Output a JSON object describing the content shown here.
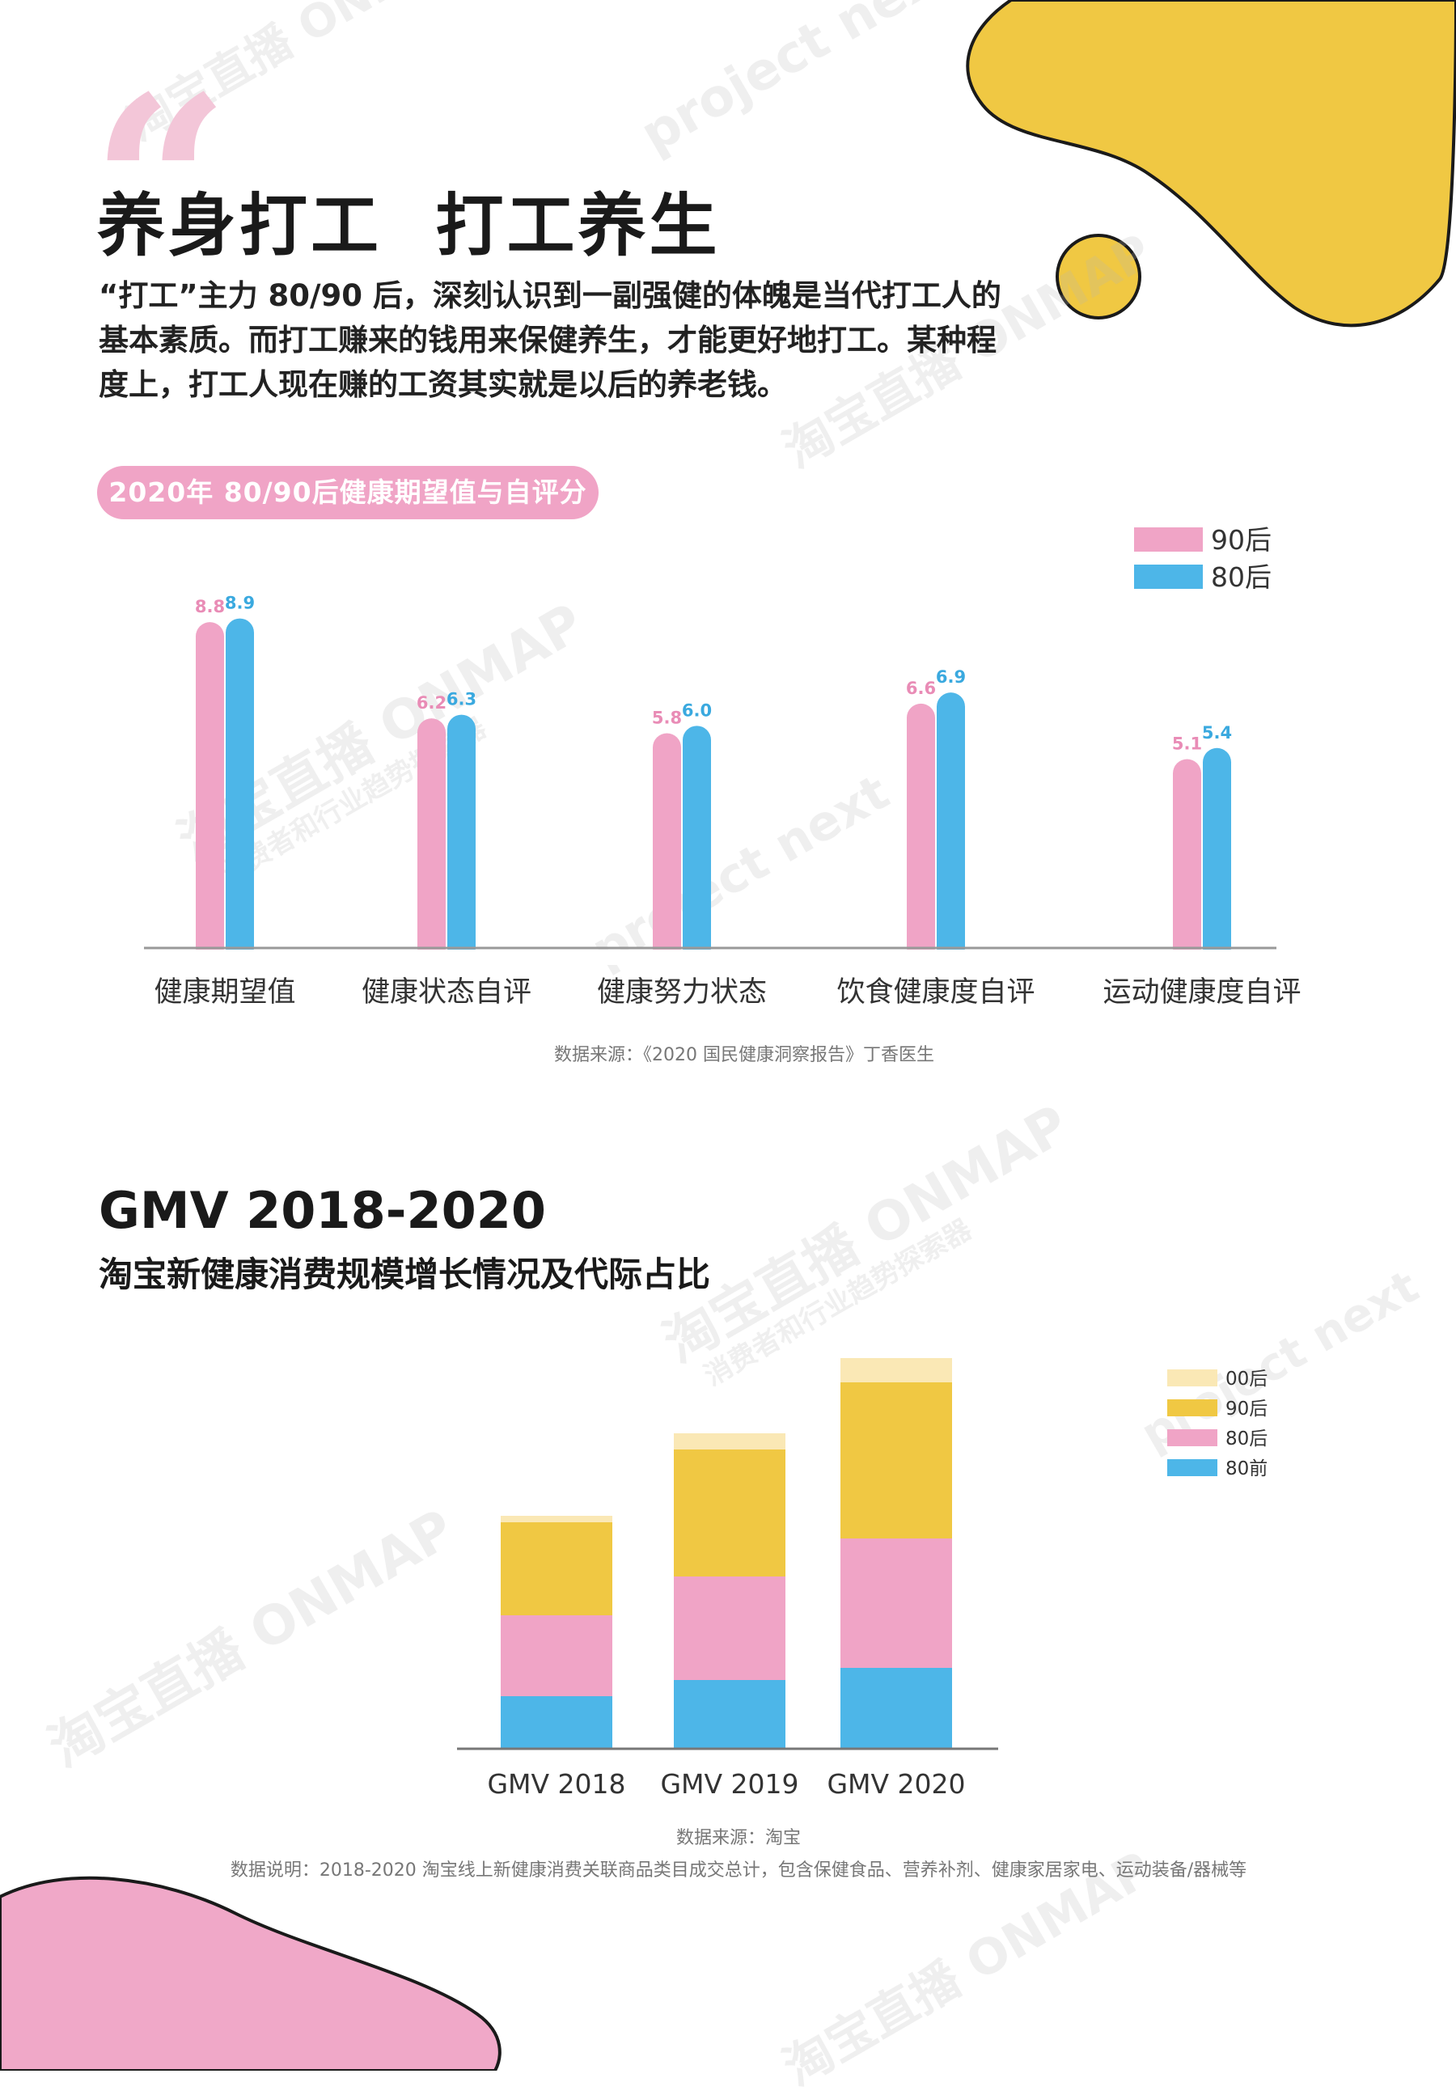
{
  "colors": {
    "pink": "#f0a4c6",
    "blue": "#4db6e8",
    "yellow": "#f0c843",
    "pale_yellow": "#fae8b5",
    "pink_label": "#e98cb6",
    "blue_label": "#3aa9df"
  },
  "header": {
    "quote_mark": "“",
    "title": "养身打工  打工养生",
    "intro": "“打工”主力 80/90 后，深刻认识到一副强健的体魄是当代打工人的基本素质。而打工赚来的钱用来保健养生，才能更好地打工。某种程度上，打工人现在赚的工资其实就是以后的养老钱。"
  },
  "watermarks": [
    "淘宝直播 ONMAP",
    "消费者和行业趋势探索器",
    "project next"
  ],
  "chart1": {
    "pill_label": "2020年 80/90后健康期望值与自评分",
    "source": "数据来源：《2020 国民健康洞察报告》丁香医生"
  },
  "chart2": {
    "title": "GMV 2018-2020",
    "subtitle": "淘宝新健康消费规模增长情况及代际占比",
    "source": "数据来源：淘宝",
    "note": "数据说明：2018-2020 淘宝线上新健康消费关联商品类目成交总计，包含保健食品、营养补剂、健康家居家电、运动装备/器械等"
  },
  "chart_data": [
    {
      "type": "bar",
      "title": "2020年 80/90后健康期望值与自评分",
      "categories": [
        "健康期望值",
        "健康状态自评",
        "健康努力状态",
        "饮食健康度自评",
        "运动健康度自评"
      ],
      "series": [
        {
          "name": "90后",
          "color": "#f0a4c6",
          "values": [
            8.8,
            6.2,
            5.8,
            6.6,
            5.1
          ]
        },
        {
          "name": "80后",
          "color": "#4db6e8",
          "values": [
            8.9,
            6.3,
            6.0,
            6.9,
            5.4
          ]
        }
      ],
      "ylim": [
        0,
        9
      ],
      "legend": "top-right",
      "grid": false
    },
    {
      "type": "bar",
      "stacked": true,
      "categories": [
        "GMV 2018",
        "GMV 2019",
        "GMV 2020"
      ],
      "series": [
        {
          "name": "80前",
          "color": "#4db6e8",
          "values": [
            65,
            85,
            100
          ]
        },
        {
          "name": "80后",
          "color": "#f0a4c6",
          "values": [
            100,
            128,
            160
          ]
        },
        {
          "name": "90后",
          "color": "#f0c843",
          "values": [
            115,
            157,
            193
          ]
        },
        {
          "name": "00后",
          "color": "#fae8b5",
          "values": [
            8,
            20,
            30
          ]
        }
      ],
      "legend": "top-right",
      "grid": false
    }
  ]
}
